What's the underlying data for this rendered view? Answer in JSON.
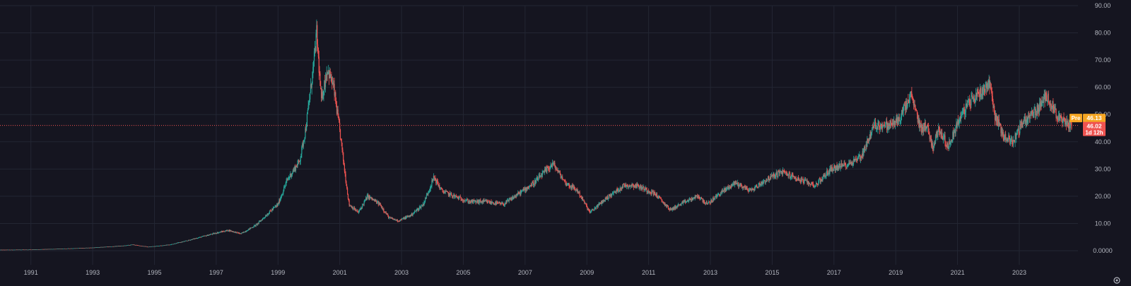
{
  "chart_data": {
    "type": "candlestick",
    "title": "",
    "xlabel": "",
    "ylabel": "",
    "grid": true,
    "ylim": [
      0,
      90
    ],
    "xlim": [
      1990.0,
      2024.9
    ],
    "x_ticks": [
      "1991",
      "1993",
      "1995",
      "1997",
      "1999",
      "2001",
      "2003",
      "2005",
      "2007",
      "2009",
      "2011",
      "2013",
      "2015",
      "2017",
      "2019",
      "2021",
      "2023"
    ],
    "y_ticks": [
      "0.0000",
      "10.00",
      "20.00",
      "30.00",
      "40.00",
      "50.00",
      "60.00",
      "70.00",
      "80.00",
      "90.00"
    ],
    "series": [
      {
        "price_path": [
          [
            1990.0,
            0.3
          ],
          [
            1991.0,
            0.4
          ],
          [
            1992.0,
            0.7
          ],
          [
            1993.0,
            1.1
          ],
          [
            1994.0,
            1.8
          ],
          [
            1994.3,
            2.2
          ],
          [
            1994.8,
            1.4
          ],
          [
            1995.5,
            2.2
          ],
          [
            1996.0,
            3.5
          ],
          [
            1996.5,
            5.0
          ],
          [
            1997.0,
            6.5
          ],
          [
            1997.4,
            7.5
          ],
          [
            1997.8,
            6.2
          ],
          [
            1998.3,
            9.5
          ],
          [
            1998.8,
            15.0
          ],
          [
            1999.0,
            17.0
          ],
          [
            1999.3,
            26.0
          ],
          [
            1999.7,
            33.0
          ],
          [
            1999.9,
            45.0
          ],
          [
            2000.15,
            68.0
          ],
          [
            2000.25,
            80.0
          ],
          [
            2000.4,
            55.0
          ],
          [
            2000.6,
            67.0
          ],
          [
            2000.8,
            60.0
          ],
          [
            2001.0,
            44.0
          ],
          [
            2001.15,
            30.0
          ],
          [
            2001.3,
            17.0
          ],
          [
            2001.6,
            14.0
          ],
          [
            2001.9,
            20.0
          ],
          [
            2002.3,
            17.0
          ],
          [
            2002.6,
            12.0
          ],
          [
            2002.9,
            11.0
          ],
          [
            2003.3,
            13.0
          ],
          [
            2003.7,
            17.0
          ],
          [
            2004.05,
            27.0
          ],
          [
            2004.3,
            22.0
          ],
          [
            2004.7,
            20.0
          ],
          [
            2005.2,
            18.0
          ],
          [
            2005.7,
            18.0
          ],
          [
            2006.3,
            17.0
          ],
          [
            2006.8,
            21.0
          ],
          [
            2007.3,
            25.0
          ],
          [
            2007.9,
            32.0
          ],
          [
            2008.3,
            25.0
          ],
          [
            2008.7,
            22.0
          ],
          [
            2009.1,
            14.0
          ],
          [
            2009.6,
            19.0
          ],
          [
            2010.2,
            24.0
          ],
          [
            2010.6,
            24.0
          ],
          [
            2011.2,
            21.0
          ],
          [
            2011.7,
            15.0
          ],
          [
            2012.2,
            18.0
          ],
          [
            2012.6,
            20.0
          ],
          [
            2012.9,
            17.0
          ],
          [
            2013.3,
            21.0
          ],
          [
            2013.8,
            25.0
          ],
          [
            2014.3,
            22.0
          ],
          [
            2014.8,
            26.0
          ],
          [
            2015.3,
            29.0
          ],
          [
            2015.9,
            26.0
          ],
          [
            2016.4,
            24.0
          ],
          [
            2016.9,
            30.0
          ],
          [
            2017.5,
            32.0
          ],
          [
            2017.9,
            35.0
          ],
          [
            2018.3,
            46.0
          ],
          [
            2018.8,
            46.0
          ],
          [
            2019.1,
            48.0
          ],
          [
            2019.5,
            57.0
          ],
          [
            2019.8,
            45.0
          ],
          [
            2020.0,
            46.0
          ],
          [
            2020.2,
            38.0
          ],
          [
            2020.4,
            45.0
          ],
          [
            2020.7,
            38.0
          ],
          [
            2021.0,
            47.0
          ],
          [
            2021.4,
            55.0
          ],
          [
            2021.9,
            60.0
          ],
          [
            2022.05,
            62.0
          ],
          [
            2022.2,
            50.0
          ],
          [
            2022.5,
            42.0
          ],
          [
            2022.8,
            40.0
          ],
          [
            2023.1,
            47.0
          ],
          [
            2023.6,
            52.0
          ],
          [
            2023.9,
            57.0
          ],
          [
            2024.3,
            48.0
          ],
          [
            2024.7,
            46.0
          ]
        ]
      }
    ],
    "last_price": 46.02,
    "pre_market_price": 46.13,
    "pre_market_label": "Pre",
    "countdown": "1d 12h",
    "colors": {
      "background": "#151520",
      "grid": "#232633",
      "up": "#26a69a",
      "down": "#ef5350",
      "pre_market": "#f5a623",
      "tick_text": "#b2b5be"
    }
  },
  "corner_icon": "gear-icon"
}
